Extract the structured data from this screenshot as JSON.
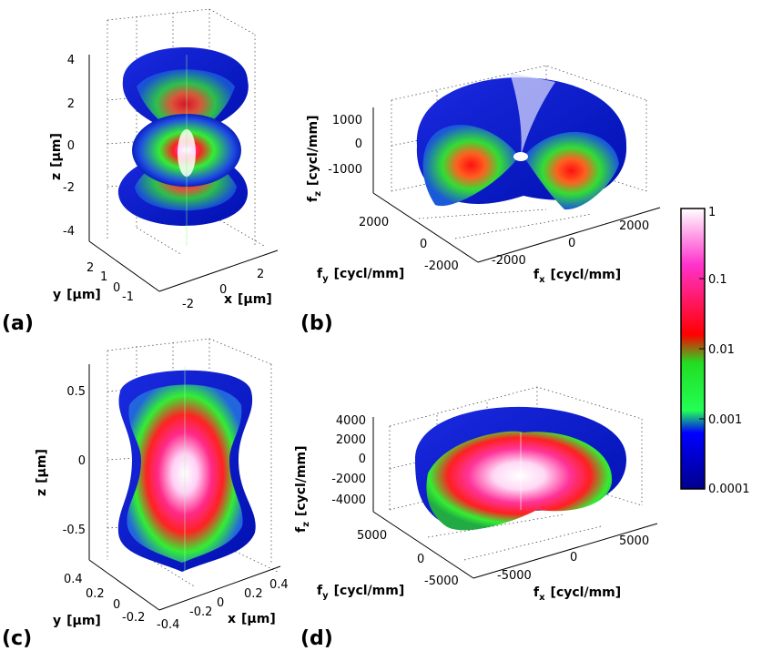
{
  "panels": [
    {
      "label": "(a)",
      "z_axis": {
        "title": "z",
        "unit": "[µm]",
        "ticks": [
          "4",
          "2",
          "0",
          "-2",
          "-4"
        ]
      },
      "y_axis": {
        "title": "y",
        "unit": "[µm]",
        "ticks": [
          "2",
          "1",
          "0",
          "-1"
        ]
      },
      "x_axis": {
        "title": "x",
        "unit": "[µm]",
        "ticks": [
          "-2",
          "0",
          "2"
        ]
      }
    },
    {
      "label": "(b)",
      "z_axis": {
        "title": "f",
        "sub": "z",
        "unit": "[cycl/mm]",
        "ticks": [
          "1000",
          "0",
          "-1000"
        ]
      },
      "y_axis": {
        "title": "f",
        "sub": "y",
        "unit": "[cycl/mm]",
        "ticks": [
          "2000",
          "0",
          "-2000"
        ]
      },
      "x_axis": {
        "title": "f",
        "sub": "x",
        "unit": "[cycl/mm]",
        "ticks": [
          "-2000",
          "0",
          "2000"
        ]
      }
    },
    {
      "label": "(c)",
      "z_axis": {
        "title": "z",
        "unit": "[µm]",
        "ticks": [
          "0.5",
          "0",
          "-0.5"
        ]
      },
      "y_axis": {
        "title": "y",
        "unit": "[µm]",
        "ticks": [
          "0.4",
          "0.2",
          "0",
          "-0.2"
        ]
      },
      "x_axis": {
        "title": "x",
        "unit": "[µm]",
        "ticks": [
          "-0.4",
          "-0.2",
          "0",
          "0.2",
          "0.4"
        ]
      }
    },
    {
      "label": "(d)",
      "z_axis": {
        "title": "f",
        "sub": "z",
        "unit": "[cycl/mm]",
        "ticks": [
          "4000",
          "2000",
          "0",
          "-2000",
          "-4000"
        ]
      },
      "y_axis": {
        "title": "f",
        "sub": "y",
        "unit": "[cycl/mm]",
        "ticks": [
          "5000",
          "0",
          "-5000"
        ]
      },
      "x_axis": {
        "title": "f",
        "sub": "x",
        "unit": "[cycl/mm]",
        "ticks": [
          "-5000",
          "0",
          "5000"
        ]
      }
    }
  ],
  "colorbar": {
    "scale": "log",
    "ticks": [
      "1",
      "0.1",
      "0.01",
      "0.001",
      "0.0001"
    ],
    "colors": [
      "#ffffff",
      "#ff33cc",
      "#ff0000",
      "#33ff33",
      "#0000ff",
      "#00008b"
    ]
  }
}
